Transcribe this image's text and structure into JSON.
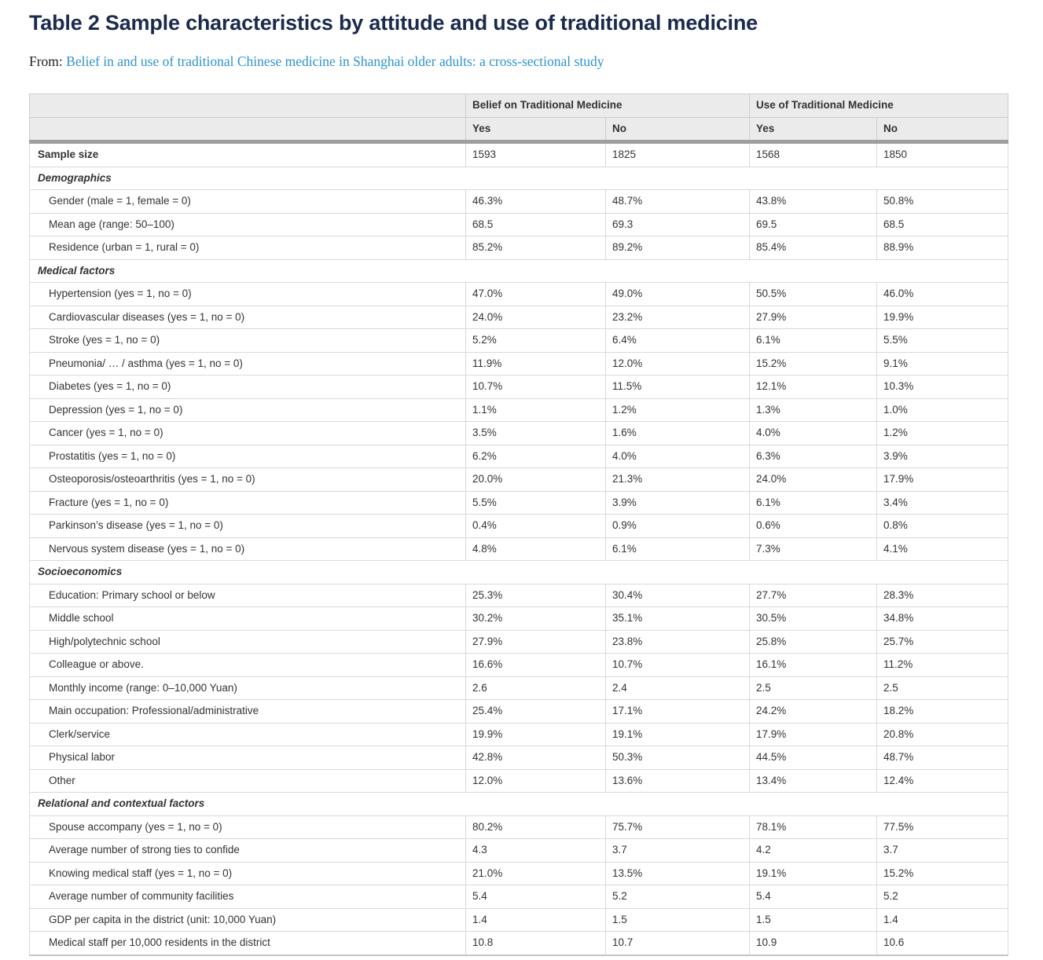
{
  "page": {
    "title": "Table 2 Sample characteristics by attitude and use of traditional medicine",
    "from_label": "From:",
    "from_link": "Belief in and use of traditional Chinese medicine in Shanghai older adults: a cross-sectional study"
  },
  "colors": {
    "title_color": "#1b2b4d",
    "link_color": "#2d93d2",
    "header_bg": "#ebebeb",
    "header_divider_bar": "#9e9e9e",
    "cell_border": "#d9d9d9",
    "body_text": "#333333"
  },
  "table": {
    "col_groups": [
      {
        "label": "Belief on Traditional Medicine"
      },
      {
        "label": "Use of Traditional Medicine"
      }
    ],
    "sub_headers": [
      "Yes",
      "No",
      "Yes",
      "No"
    ],
    "rows": [
      {
        "type": "bold",
        "label": "Sample size",
        "values": [
          "1593",
          "1825",
          "1568",
          "1850"
        ]
      },
      {
        "type": "section",
        "label": "Demographics"
      },
      {
        "type": "data",
        "label": "Gender (male = 1, female = 0)",
        "values": [
          "46.3%",
          "48.7%",
          "43.8%",
          "50.8%"
        ]
      },
      {
        "type": "data",
        "label": "Mean age (range: 50–100)",
        "values": [
          "68.5",
          "69.3",
          "69.5",
          "68.5"
        ]
      },
      {
        "type": "data",
        "label": "Residence (urban = 1, rural = 0)",
        "values": [
          "85.2%",
          "89.2%",
          "85.4%",
          "88.9%"
        ]
      },
      {
        "type": "section",
        "label": "Medical factors"
      },
      {
        "type": "data",
        "label": "Hypertension (yes = 1, no = 0)",
        "values": [
          "47.0%",
          "49.0%",
          "50.5%",
          "46.0%"
        ]
      },
      {
        "type": "data",
        "label": "Cardiovascular diseases (yes = 1, no = 0)",
        "values": [
          "24.0%",
          "23.2%",
          "27.9%",
          "19.9%"
        ]
      },
      {
        "type": "data",
        "label": "Stroke (yes = 1, no = 0)",
        "values": [
          "5.2%",
          "6.4%",
          "6.1%",
          "5.5%"
        ]
      },
      {
        "type": "data",
        "label": "Pneumonia/ … / asthma (yes = 1, no = 0)",
        "values": [
          "11.9%",
          "12.0%",
          "15.2%",
          "9.1%"
        ]
      },
      {
        "type": "data",
        "label": "Diabetes (yes = 1, no = 0)",
        "values": [
          "10.7%",
          "11.5%",
          "12.1%",
          "10.3%"
        ]
      },
      {
        "type": "data",
        "label": "Depression (yes = 1, no = 0)",
        "values": [
          "1.1%",
          "1.2%",
          "1.3%",
          "1.0%"
        ]
      },
      {
        "type": "data",
        "label": "Cancer (yes = 1, no = 0)",
        "values": [
          "3.5%",
          "1.6%",
          "4.0%",
          "1.2%"
        ]
      },
      {
        "type": "data",
        "label": "Prostatitis (yes = 1, no = 0)",
        "values": [
          "6.2%",
          "4.0%",
          "6.3%",
          "3.9%"
        ]
      },
      {
        "type": "data",
        "label": "Osteoporosis/osteoarthritis (yes = 1, no = 0)",
        "values": [
          "20.0%",
          "21.3%",
          "24.0%",
          "17.9%"
        ]
      },
      {
        "type": "data",
        "label": "Fracture (yes = 1, no = 0)",
        "values": [
          "5.5%",
          "3.9%",
          "6.1%",
          "3.4%"
        ]
      },
      {
        "type": "data",
        "label": "Parkinson’s disease (yes = 1, no = 0)",
        "values": [
          "0.4%",
          "0.9%",
          "0.6%",
          "0.8%"
        ]
      },
      {
        "type": "data",
        "label": "Nervous system disease (yes = 1, no = 0)",
        "values": [
          "4.8%",
          "6.1%",
          "7.3%",
          "4.1%"
        ]
      },
      {
        "type": "section",
        "label": "Socioeconomics"
      },
      {
        "type": "data",
        "label": "Education: Primary school or below",
        "values": [
          "25.3%",
          "30.4%",
          "27.7%",
          "28.3%"
        ]
      },
      {
        "type": "data",
        "label": "Middle school",
        "values": [
          "30.2%",
          "35.1%",
          "30.5%",
          "34.8%"
        ]
      },
      {
        "type": "data",
        "label": "High/polytechnic school",
        "values": [
          "27.9%",
          "23.8%",
          "25.8%",
          "25.7%"
        ]
      },
      {
        "type": "data",
        "label": "Colleague or above.",
        "values": [
          "16.6%",
          "10.7%",
          "16.1%",
          "11.2%"
        ]
      },
      {
        "type": "data",
        "label": "Monthly income (range: 0–10,000 Yuan)",
        "values": [
          "2.6",
          "2.4",
          "2.5",
          "2.5"
        ]
      },
      {
        "type": "data",
        "label": "Main occupation: Professional/administrative",
        "values": [
          "25.4%",
          "17.1%",
          "24.2%",
          "18.2%"
        ]
      },
      {
        "type": "data",
        "label": "Clerk/service",
        "values": [
          "19.9%",
          "19.1%",
          "17.9%",
          "20.8%"
        ]
      },
      {
        "type": "data",
        "label": "Physical labor",
        "values": [
          "42.8%",
          "50.3%",
          "44.5%",
          "48.7%"
        ]
      },
      {
        "type": "data",
        "label": "Other",
        "values": [
          "12.0%",
          "13.6%",
          "13.4%",
          "12.4%"
        ]
      },
      {
        "type": "section",
        "label": "Relational and contextual factors"
      },
      {
        "type": "data",
        "label": "Spouse accompany (yes = 1, no = 0)",
        "values": [
          "80.2%",
          "75.7%",
          "78.1%",
          "77.5%"
        ]
      },
      {
        "type": "data",
        "label": "Average number of strong ties to confide",
        "values": [
          "4.3",
          "3.7",
          "4.2",
          "3.7"
        ]
      },
      {
        "type": "data",
        "label": "Knowing medical staff (yes = 1, no = 0)",
        "values": [
          "21.0%",
          "13.5%",
          "19.1%",
          "15.2%"
        ]
      },
      {
        "type": "data",
        "label": "Average number of community facilities",
        "values": [
          "5.4",
          "5.2",
          "5.4",
          "5.2"
        ]
      },
      {
        "type": "data",
        "label": "GDP per capita in the district (unit: 10,000 Yuan)",
        "values": [
          "1.4",
          "1.5",
          "1.5",
          "1.4"
        ]
      },
      {
        "type": "data",
        "label": "Medical staff per 10,000 residents in the district",
        "values": [
          "10.8",
          "10.7",
          "10.9",
          "10.6"
        ]
      }
    ]
  }
}
